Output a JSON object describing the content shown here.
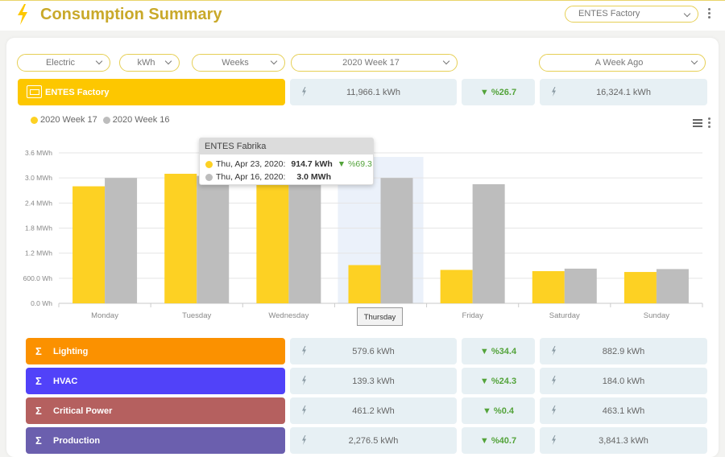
{
  "header": {
    "title": "Consumption Summary",
    "factory_select": "ENTES Factory"
  },
  "filters": {
    "energy_type": "Electric",
    "unit": "kWh",
    "period": "Weeks",
    "week": "2020 Week 17",
    "compare": "A Week Ago"
  },
  "summary": {
    "label": "ENTES Factory",
    "current": "11,966.1 kWh",
    "change": "▼ %26.7",
    "previous": "16,324.1 kWh"
  },
  "chart_data": {
    "type": "bar",
    "categories": [
      "Monday",
      "Tuesday",
      "Wednesday",
      "Thursday",
      "Friday",
      "Saturday",
      "Sunday"
    ],
    "series": [
      {
        "name": "2020 Week 17",
        "color": "#fdd123",
        "values": [
          2.8,
          3.1,
          2.98,
          0.9147,
          0.8,
          0.77,
          0.75
        ]
      },
      {
        "name": "2020 Week 16",
        "color": "#bdbdbd",
        "values": [
          3.0,
          3.05,
          2.98,
          3.0,
          2.85,
          0.83,
          0.82
        ]
      }
    ],
    "y_ticks": [
      "0.0 Wh",
      "600.0 Wh",
      "1.2 MWh",
      "1.8 MWh",
      "2.4 MWh",
      "3.0 MWh",
      "3.6 MWh"
    ],
    "ylim": [
      0,
      3.6
    ],
    "y_unit": "MWh",
    "highlight_category": "Thursday",
    "legend_position": "top-left"
  },
  "tooltip": {
    "title": "ENTES Fabrika",
    "line1_date": "Thu, Apr 23, 2020:",
    "line1_value": "914.7 kWh",
    "line1_change": "▼ %69.3",
    "line2_date": "Thu, Apr 16, 2020:",
    "line2_value": "3.0 MWh",
    "x_label": "Thursday"
  },
  "breakdown": [
    {
      "label": "Lighting",
      "color": "#fb9100",
      "current": "579.6 kWh",
      "change": "▼ %34.4",
      "previous": "882.9 kWh"
    },
    {
      "label": "HVAC",
      "color": "#5142f9",
      "current": "139.3 kWh",
      "change": "▼ %24.3",
      "previous": "184.0 kWh"
    },
    {
      "label": "Critical Power",
      "color": "#b5605f",
      "current": "461.2 kWh",
      "change": "▼ %0.4",
      "previous": "463.1 kWh"
    },
    {
      "label": "Production",
      "color": "#6b5fae",
      "current": "2,276.5 kWh",
      "change": "▼ %40.7",
      "previous": "3,841.3 kWh"
    }
  ],
  "colors": {
    "accent": "#fdd123",
    "title": "#c9a92a",
    "positive": "#53a33a"
  },
  "icons": [
    "bolt-icon",
    "chevron-down-icon",
    "kebab-menu-icon",
    "factory-icon",
    "sigma-icon",
    "hamburger-menu-icon"
  ]
}
